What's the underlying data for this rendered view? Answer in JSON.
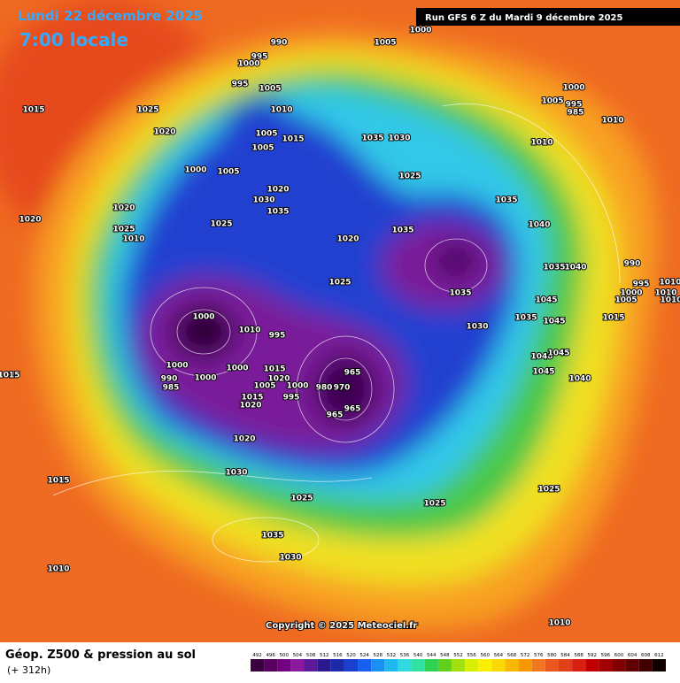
{
  "header": {
    "date": "Lundi 22 décembre 2025",
    "time": "7:00 locale",
    "run": "Run GFS 6 Z du Mardi 9 décembre 2025"
  },
  "map": {
    "pressure_labels": [
      990,
      1000,
      1005,
      995,
      1000,
      995,
      1005,
      1000,
      1005,
      995,
      985,
      1010,
      1015,
      1025,
      1010,
      1020,
      1005,
      1015,
      1005,
      1035,
      1030,
      1010,
      1000,
      1005,
      1025,
      1020,
      1030,
      1035,
      1020,
      1035,
      1020,
      1025,
      1025,
      1040,
      1035,
      1010,
      1020,
      990,
      1035,
      1040,
      1025,
      1035,
      995,
      1000,
      1005,
      1010,
      1010,
      1010,
      1045,
      1000,
      1010,
      1035,
      1045,
      1015,
      1030,
      995,
      1040,
      1045,
      965,
      1000,
      1000,
      1045,
      1040,
      1015,
      990,
      1000,
      1015,
      1020,
      1005,
      1000,
      985,
      995,
      1015,
      1020,
      965,
      965,
      980,
      970,
      1020,
      1030,
      1015,
      1025,
      1025,
      1025,
      1035,
      1030,
      1010,
      1010
    ]
  },
  "copyright": "Copyright © 2025 Meteociel.fr",
  "footer": {
    "title": "Géop. Z500 & pression au sol",
    "range": "(+ 312h)"
  },
  "scale": {
    "ticks": [
      492,
      496,
      500,
      504,
      508,
      512,
      516,
      520,
      524,
      528,
      532,
      536,
      540,
      544,
      548,
      552,
      556,
      560,
      564,
      568,
      572,
      576,
      580,
      584,
      588,
      592,
      596,
      600,
      604,
      608,
      612
    ],
    "colors": [
      "#3a0040",
      "#58005f",
      "#720080",
      "#8a1aa0",
      "#5a1a9a",
      "#2a1a90",
      "#1a2aa8",
      "#1a40d0",
      "#1a60f0",
      "#1a90f0",
      "#20b8f0",
      "#30d8e0",
      "#30e0a0",
      "#30d050",
      "#60d020",
      "#a0e010",
      "#d8f000",
      "#f8f000",
      "#f8d800",
      "#f8b800",
      "#f89800",
      "#f07820",
      "#e85820",
      "#e04018",
      "#d82010",
      "#c00000",
      "#a00000",
      "#800000",
      "#600000",
      "#400000",
      "#100000"
    ]
  }
}
